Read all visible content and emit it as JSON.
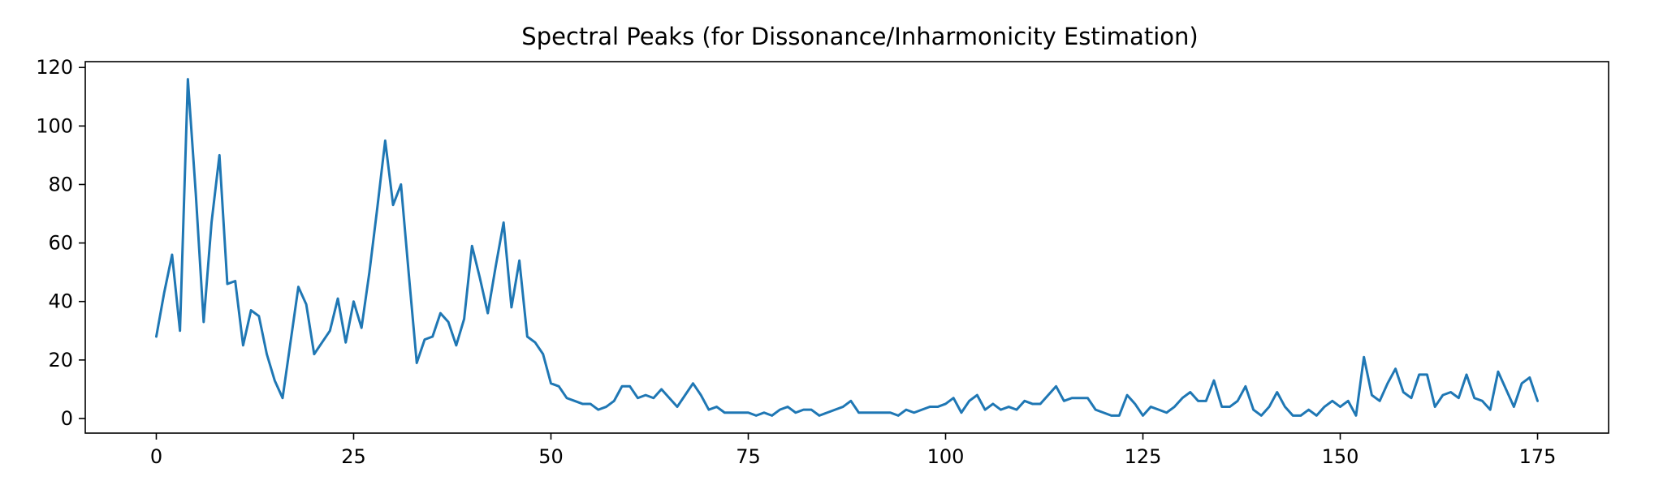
{
  "chart_data": {
    "type": "line",
    "title": "Spectral Peaks (for Dissonance/Inharmonicity Estimation)",
    "xlabel": "",
    "ylabel": "",
    "xlim": [
      -9,
      184
    ],
    "ylim": [
      -5,
      122
    ],
    "xticks": [
      0,
      25,
      50,
      75,
      100,
      125,
      150,
      175
    ],
    "yticks": [
      0,
      20,
      40,
      60,
      80,
      100,
      120
    ],
    "grid": false,
    "legend": "none",
    "colors": {
      "line": "#1f77b4",
      "axes": "#000000",
      "background": "#ffffff"
    },
    "series": [
      {
        "x_start": 0,
        "x_step": 1,
        "values": [
          28,
          43,
          56,
          30,
          116,
          77,
          33,
          67,
          90,
          46,
          47,
          25,
          37,
          35,
          22,
          13,
          7,
          26,
          45,
          39,
          22,
          26,
          30,
          41,
          26,
          40,
          31,
          50,
          72,
          95,
          73,
          80,
          49,
          19,
          27,
          28,
          36,
          33,
          25,
          34,
          59,
          48,
          36,
          52,
          67,
          38,
          54,
          28,
          26,
          22,
          12,
          11,
          7,
          6,
          5,
          5,
          3,
          4,
          6,
          11,
          11,
          7,
          8,
          7,
          10,
          7,
          4,
          8,
          12,
          8,
          3,
          4,
          2,
          2,
          2,
          2,
          1,
          2,
          1,
          3,
          4,
          2,
          3,
          3,
          1,
          2,
          3,
          4,
          6,
          2,
          2,
          2,
          2,
          2,
          1,
          3,
          2,
          3,
          4,
          4,
          5,
          7,
          2,
          6,
          8,
          3,
          5,
          3,
          4,
          3,
          6,
          5,
          5,
          8,
          11,
          6,
          7,
          7,
          7,
          3,
          2,
          1,
          1,
          8,
          5,
          1,
          4,
          3,
          2,
          4,
          7,
          9,
          6,
          6,
          13,
          4,
          4,
          6,
          11,
          3,
          1,
          4,
          9,
          4,
          1,
          1,
          3,
          1,
          4,
          6,
          4,
          6,
          1,
          21,
          8,
          6,
          12,
          17,
          9,
          7,
          15,
          15,
          4,
          8,
          9,
          7,
          15,
          7,
          6,
          3,
          16,
          10,
          4,
          12,
          14,
          6
        ]
      }
    ]
  }
}
